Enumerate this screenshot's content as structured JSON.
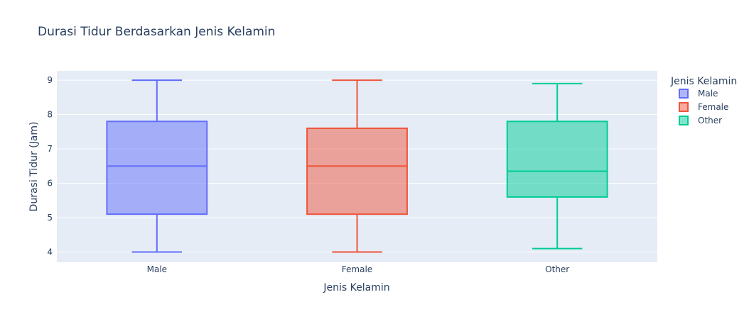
{
  "chart_data": {
    "type": "box",
    "title": "Durasi Tidur Berdasarkan Jenis Kelamin",
    "xlabel": "Jenis Kelamin",
    "ylabel": "Durasi Tidur (Jam)",
    "ylim": [
      3.7,
      9.27
    ],
    "yticks": [
      "4",
      "5",
      "6",
      "7",
      "8",
      "9"
    ],
    "grid": true,
    "legend": {
      "title": "Jenis Kelamin",
      "placement": "right"
    },
    "categories": [
      "Male",
      "Female",
      "Other"
    ],
    "series": [
      {
        "name": "Male",
        "min": 4.0,
        "q1": 5.1,
        "median": 6.5,
        "q3": 7.8,
        "max": 9.0,
        "color": "#636efa"
      },
      {
        "name": "Female",
        "min": 4.0,
        "q1": 5.1,
        "median": 6.5,
        "q3": 7.6,
        "max": 9.0,
        "color": "#EF553B"
      },
      {
        "name": "Other",
        "min": 4.1,
        "q1": 5.6,
        "median": 6.35,
        "q3": 7.8,
        "max": 8.9,
        "color": "#00cc96"
      }
    ],
    "colors": {
      "plot_bg": "#E5ECF6",
      "grid": "#ffffff",
      "text": "#2a3f5f"
    }
  }
}
